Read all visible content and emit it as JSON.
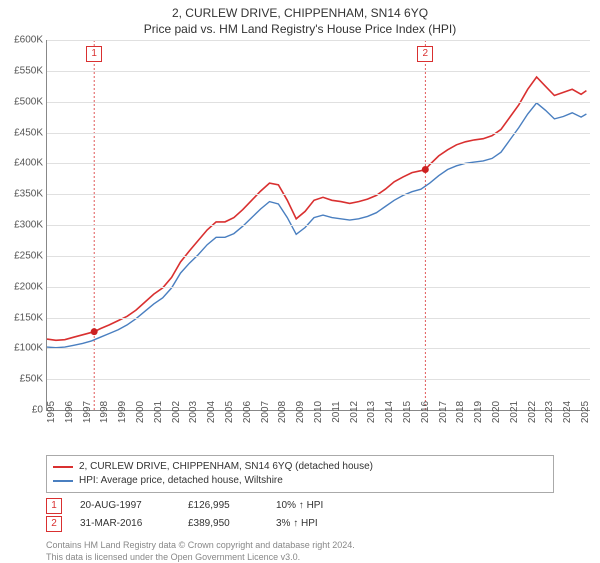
{
  "title_main": "2, CURLEW DRIVE, CHIPPENHAM, SN14 6YQ",
  "title_sub": "Price paid vs. HM Land Registry's House Price Index (HPI)",
  "colors": {
    "series_red": "#d93030",
    "series_blue": "#4a7fc0",
    "grid": "#e0e0e0",
    "axis": "#888888",
    "marker_dot": "#cc2020"
  },
  "yaxis": {
    "min": 0,
    "max": 600000,
    "step": 50000,
    "labels": [
      "£0",
      "£50K",
      "£100K",
      "£150K",
      "£200K",
      "£250K",
      "£300K",
      "£350K",
      "£400K",
      "£450K",
      "£500K",
      "£550K",
      "£600K"
    ]
  },
  "xaxis": {
    "min": 1995,
    "max": 2025.5,
    "labels": [
      "1995",
      "1996",
      "1997",
      "1998",
      "1999",
      "2000",
      "2001",
      "2002",
      "2003",
      "2004",
      "2005",
      "2006",
      "2007",
      "2008",
      "2009",
      "2010",
      "2011",
      "2012",
      "2013",
      "2014",
      "2015",
      "2016",
      "2017",
      "2018",
      "2019",
      "2020",
      "2021",
      "2022",
      "2023",
      "2024",
      "2025"
    ]
  },
  "series": [
    {
      "name": "2, CURLEW DRIVE, CHIPPENHAM, SN14 6YQ (detached house)",
      "color": "#d93030",
      "width": 1.6,
      "points": [
        [
          1995.0,
          115000
        ],
        [
          1995.5,
          113000
        ],
        [
          1996.0,
          114000
        ],
        [
          1996.5,
          118000
        ],
        [
          1997.0,
          122000
        ],
        [
          1997.65,
          126995
        ],
        [
          1998.0,
          132000
        ],
        [
          1998.5,
          138000
        ],
        [
          1999.0,
          145000
        ],
        [
          1999.5,
          152000
        ],
        [
          2000.0,
          162000
        ],
        [
          2000.5,
          175000
        ],
        [
          2001.0,
          188000
        ],
        [
          2001.5,
          198000
        ],
        [
          2002.0,
          215000
        ],
        [
          2002.5,
          240000
        ],
        [
          2003.0,
          258000
        ],
        [
          2003.5,
          275000
        ],
        [
          2004.0,
          292000
        ],
        [
          2004.5,
          305000
        ],
        [
          2005.0,
          305000
        ],
        [
          2005.5,
          312000
        ],
        [
          2006.0,
          325000
        ],
        [
          2006.5,
          340000
        ],
        [
          2007.0,
          355000
        ],
        [
          2007.5,
          368000
        ],
        [
          2008.0,
          365000
        ],
        [
          2008.5,
          340000
        ],
        [
          2009.0,
          310000
        ],
        [
          2009.5,
          322000
        ],
        [
          2010.0,
          340000
        ],
        [
          2010.5,
          345000
        ],
        [
          2011.0,
          340000
        ],
        [
          2011.5,
          338000
        ],
        [
          2012.0,
          335000
        ],
        [
          2012.5,
          338000
        ],
        [
          2013.0,
          342000
        ],
        [
          2013.5,
          348000
        ],
        [
          2014.0,
          358000
        ],
        [
          2014.5,
          370000
        ],
        [
          2015.0,
          378000
        ],
        [
          2015.5,
          385000
        ],
        [
          2016.0,
          388000
        ],
        [
          2016.25,
          389950
        ],
        [
          2016.5,
          398000
        ],
        [
          2017.0,
          412000
        ],
        [
          2017.5,
          422000
        ],
        [
          2018.0,
          430000
        ],
        [
          2018.5,
          435000
        ],
        [
          2019.0,
          438000
        ],
        [
          2019.5,
          440000
        ],
        [
          2020.0,
          445000
        ],
        [
          2020.5,
          455000
        ],
        [
          2021.0,
          475000
        ],
        [
          2021.5,
          495000
        ],
        [
          2022.0,
          520000
        ],
        [
          2022.5,
          540000
        ],
        [
          2023.0,
          525000
        ],
        [
          2023.5,
          510000
        ],
        [
          2024.0,
          515000
        ],
        [
          2024.5,
          520000
        ],
        [
          2025.0,
          512000
        ],
        [
          2025.3,
          518000
        ]
      ]
    },
    {
      "name": "HPI: Average price, detached house, Wiltshire",
      "color": "#4a7fc0",
      "width": 1.4,
      "points": [
        [
          1995.0,
          102000
        ],
        [
          1995.5,
          101000
        ],
        [
          1996.0,
          102000
        ],
        [
          1996.5,
          105000
        ],
        [
          1997.0,
          108000
        ],
        [
          1997.5,
          112000
        ],
        [
          1998.0,
          118000
        ],
        [
          1998.5,
          124000
        ],
        [
          1999.0,
          130000
        ],
        [
          1999.5,
          138000
        ],
        [
          2000.0,
          148000
        ],
        [
          2000.5,
          160000
        ],
        [
          2001.0,
          172000
        ],
        [
          2001.5,
          182000
        ],
        [
          2002.0,
          198000
        ],
        [
          2002.5,
          222000
        ],
        [
          2003.0,
          238000
        ],
        [
          2003.5,
          252000
        ],
        [
          2004.0,
          268000
        ],
        [
          2004.5,
          280000
        ],
        [
          2005.0,
          280000
        ],
        [
          2005.5,
          286000
        ],
        [
          2006.0,
          298000
        ],
        [
          2006.5,
          312000
        ],
        [
          2007.0,
          326000
        ],
        [
          2007.5,
          338000
        ],
        [
          2008.0,
          334000
        ],
        [
          2008.5,
          312000
        ],
        [
          2009.0,
          285000
        ],
        [
          2009.5,
          296000
        ],
        [
          2010.0,
          312000
        ],
        [
          2010.5,
          316000
        ],
        [
          2011.0,
          312000
        ],
        [
          2011.5,
          310000
        ],
        [
          2012.0,
          308000
        ],
        [
          2012.5,
          310000
        ],
        [
          2013.0,
          314000
        ],
        [
          2013.5,
          320000
        ],
        [
          2014.0,
          330000
        ],
        [
          2014.5,
          340000
        ],
        [
          2015.0,
          348000
        ],
        [
          2015.5,
          354000
        ],
        [
          2016.0,
          358000
        ],
        [
          2016.5,
          368000
        ],
        [
          2017.0,
          380000
        ],
        [
          2017.5,
          390000
        ],
        [
          2018.0,
          396000
        ],
        [
          2018.5,
          400000
        ],
        [
          2019.0,
          402000
        ],
        [
          2019.5,
          404000
        ],
        [
          2020.0,
          408000
        ],
        [
          2020.5,
          418000
        ],
        [
          2021.0,
          438000
        ],
        [
          2021.5,
          458000
        ],
        [
          2022.0,
          480000
        ],
        [
          2022.5,
          498000
        ],
        [
          2023.0,
          486000
        ],
        [
          2023.5,
          472000
        ],
        [
          2024.0,
          476000
        ],
        [
          2024.5,
          482000
        ],
        [
          2025.0,
          475000
        ],
        [
          2025.3,
          480000
        ]
      ]
    }
  ],
  "markers": [
    {
      "n": "1",
      "x": 1997.65,
      "y": 126995,
      "color": "#d93030"
    },
    {
      "n": "2",
      "x": 2016.25,
      "y": 389950,
      "color": "#d93030"
    }
  ],
  "legend": [
    {
      "color": "#d93030",
      "text": "2, CURLEW DRIVE, CHIPPENHAM, SN14 6YQ (detached house)"
    },
    {
      "color": "#4a7fc0",
      "text": "HPI: Average price, detached house, Wiltshire"
    }
  ],
  "sales": [
    {
      "n": "1",
      "color": "#d93030",
      "date": "20-AUG-1997",
      "price": "£126,995",
      "delta": "10% ↑ HPI"
    },
    {
      "n": "2",
      "color": "#d93030",
      "date": "31-MAR-2016",
      "price": "£389,950",
      "delta": "3% ↑ HPI"
    }
  ],
  "footer1": "Contains HM Land Registry data © Crown copyright and database right 2024.",
  "footer2": "This data is licensed under the Open Government Licence v3.0."
}
